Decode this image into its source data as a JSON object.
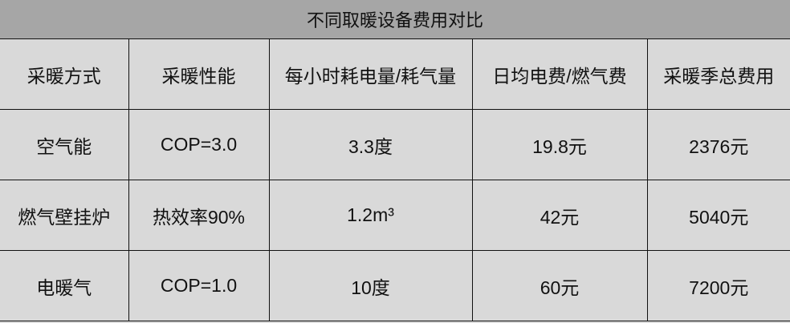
{
  "title": "不同取暖设备费用对比",
  "headers": [
    "采暖方式",
    "采暖性能",
    "每小时耗电量/耗气量",
    "日均电费/燃气费",
    "采暖季总费用"
  ],
  "rows": [
    [
      "空气能",
      "COP=3.0",
      "3.3度",
      "19.8元",
      "2376元"
    ],
    [
      "燃气壁挂炉",
      "热效率90%",
      "1.2m³",
      "42元",
      "5040元"
    ],
    [
      "电暖气",
      "COP=1.0",
      "10度",
      "60元",
      "7200元"
    ]
  ]
}
